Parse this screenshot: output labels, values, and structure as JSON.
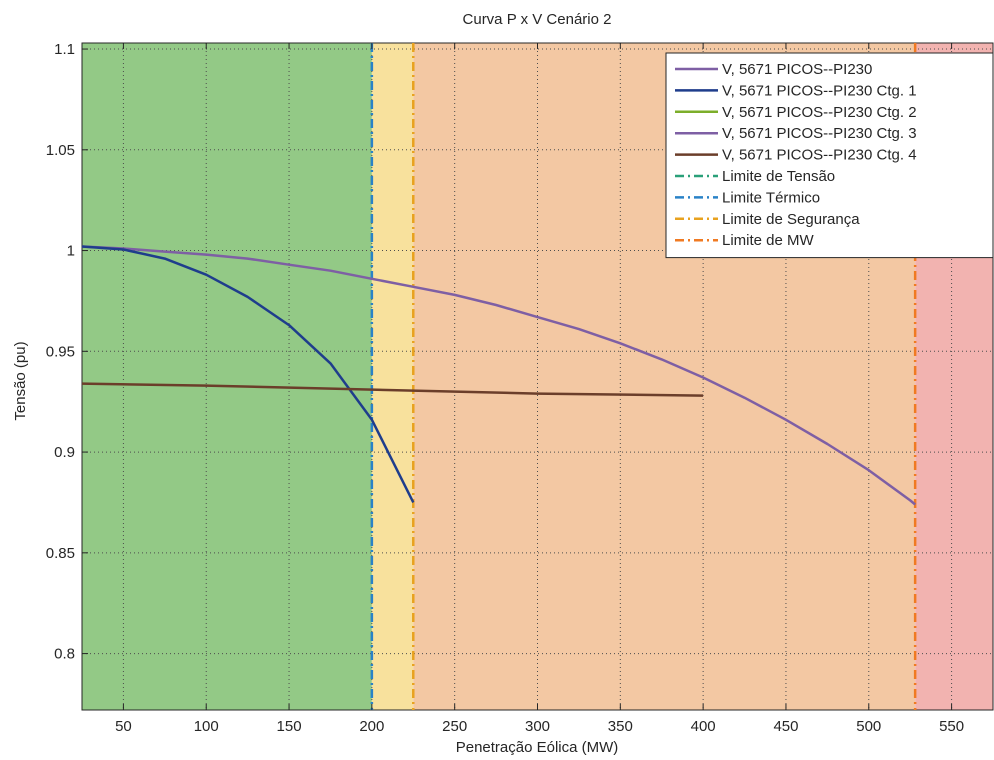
{
  "chart_data": {
    "type": "line",
    "title": "Curva P x V Cenário 2",
    "xlabel": "Penetração Eólica (MW)",
    "ylabel": "Tensão (pu)",
    "xlim": [
      25,
      575
    ],
    "ylim": [
      0.772,
      1.103
    ],
    "xticks": [
      50,
      100,
      150,
      200,
      250,
      300,
      350,
      400,
      450,
      500,
      550
    ],
    "yticks": [
      0.8,
      0.85,
      0.9,
      0.95,
      1,
      1.05,
      1.1
    ],
    "grid": true,
    "legend_position": "top-right",
    "regions": [
      {
        "name": "voltage-safe",
        "from": 25,
        "to": 200,
        "color": "#93c986"
      },
      {
        "name": "thermal",
        "from": 200,
        "to": 225,
        "color": "#f8e19d"
      },
      {
        "name": "security",
        "from": 225,
        "to": 528,
        "color": "#f3c8a3"
      },
      {
        "name": "mw",
        "from": 528,
        "to": 575,
        "color": "#f2b3b0"
      }
    ],
    "series": [
      {
        "name": "V, 5671 PICOS--PI230",
        "color": "#7e5fa4",
        "width": 2.5,
        "x": [
          25,
          50,
          75,
          100,
          125,
          150,
          175,
          200,
          225,
          250,
          275,
          300,
          325,
          350,
          375,
          400,
          425,
          450,
          475,
          500,
          525,
          528
        ],
        "y": [
          1.002,
          1.001,
          0.9995,
          0.998,
          0.996,
          0.993,
          0.99,
          0.986,
          0.982,
          0.978,
          0.973,
          0.967,
          0.961,
          0.954,
          0.946,
          0.937,
          0.927,
          0.916,
          0.904,
          0.891,
          0.876,
          0.874
        ]
      },
      {
        "name": "V, 5671 PICOS--PI230 Ctg. 1",
        "color": "#1f3d8c",
        "width": 2.5,
        "x": [
          25,
          50,
          75,
          100,
          125,
          150,
          175,
          200,
          225
        ],
        "y": [
          1.002,
          1.0005,
          0.996,
          0.988,
          0.977,
          0.963,
          0.944,
          0.916,
          0.875
        ]
      },
      {
        "name": "V, 5671 PICOS--PI230 Ctg. 2",
        "color": "#7cae2a",
        "width": 2.5,
        "x": [],
        "y": []
      },
      {
        "name": "V, 5671 PICOS--PI230 Ctg. 3",
        "color": "#7e5fa4",
        "width": 2.5,
        "x": [],
        "y": []
      },
      {
        "name": "V, 5671 PICOS--PI230 Ctg. 4",
        "color": "#6b3e2a",
        "width": 2.5,
        "x": [
          25,
          100,
          200,
          300,
          400
        ],
        "y": [
          0.934,
          0.933,
          0.931,
          0.929,
          0.928
        ]
      }
    ],
    "vlines": [
      {
        "name": "Limite de Tensão",
        "x": null,
        "color": "#2aa079"
      },
      {
        "name": "Limite Térmico",
        "x": 200,
        "color": "#2a82c7"
      },
      {
        "name": "Limite de Segurança",
        "x": 225,
        "color": "#e8a21f"
      },
      {
        "name": "Limite de MW",
        "x": 528,
        "color": "#f07a22"
      }
    ]
  }
}
